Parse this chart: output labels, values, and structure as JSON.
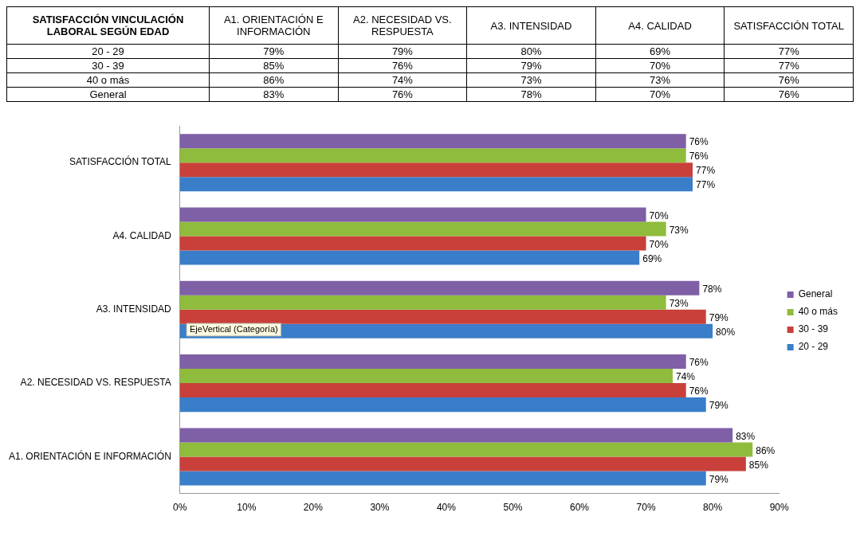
{
  "chart_data": {
    "type": "bar",
    "orientation": "horizontal",
    "title": "SATISFACCIÓN VINCULACIÓN LABORAL SEGÚN EDAD",
    "categories": [
      "SATISFACCIÓN TOTAL",
      "A4. CALIDAD",
      "A3. INTENSIDAD",
      "A2. NECESIDAD VS. RESPUESTA",
      "A1. ORIENTACIÓN E INFORMACIÓN"
    ],
    "series": [
      {
        "name": "General",
        "color": "#7f5fa6",
        "values": [
          76,
          70,
          78,
          76,
          83
        ],
        "value_labels": [
          "76%",
          "70%",
          "78%",
          "76%",
          "83%"
        ]
      },
      {
        "name": "40 o más",
        "color": "#8fbc3c",
        "values": [
          76,
          73,
          73,
          74,
          86
        ],
        "value_labels": [
          "76%",
          "73%",
          "73%",
          "74%",
          "86%"
        ]
      },
      {
        "name": "30 - 39",
        "color": "#c9403a",
        "values": [
          77,
          70,
          79,
          76,
          85
        ],
        "value_labels": [
          "77%",
          "70%",
          "79%",
          "76%",
          "85%"
        ]
      },
      {
        "name": "20 - 29",
        "color": "#3a7dc9",
        "values": [
          77,
          69,
          80,
          79,
          79
        ],
        "value_labels": [
          "77%",
          "69%",
          "80%",
          "79%",
          "79%"
        ]
      }
    ],
    "xlim": [
      0,
      90
    ],
    "xticks": [
      {
        "value": 0,
        "label": "0%"
      },
      {
        "value": 10,
        "label": "10%"
      },
      {
        "value": 20,
        "label": "20%"
      },
      {
        "value": 30,
        "label": "30%"
      },
      {
        "value": 40,
        "label": "40%"
      },
      {
        "value": 50,
        "label": "50%"
      },
      {
        "value": 60,
        "label": "60%"
      },
      {
        "value": 70,
        "label": "70%"
      },
      {
        "value": 80,
        "label": "80%"
      },
      {
        "value": 90,
        "label": "90%"
      }
    ],
    "grid": false,
    "legend": "right",
    "annotations": [
      "EjeVertical (Categoría)"
    ]
  }
}
